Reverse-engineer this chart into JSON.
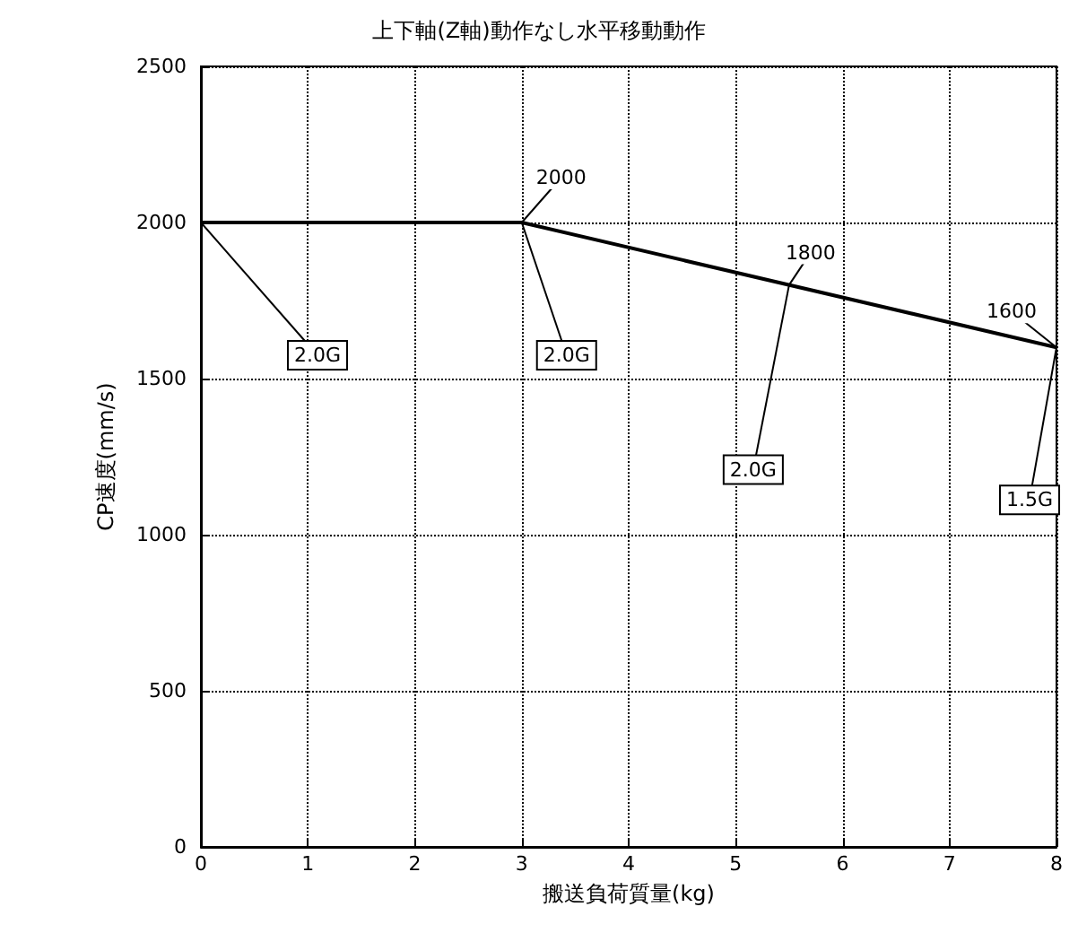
{
  "chart_data": {
    "type": "line",
    "title": "上下軸(Z軸)動作なし水平移動動作",
    "xlabel": "搬送負荷質量(kg)",
    "ylabel": "CP速度(mm/s)",
    "x": [
      0,
      3,
      8
    ],
    "series": [
      {
        "color": "#000000",
        "values": [
          2000,
          2000,
          1600
        ]
      }
    ],
    "xlim": [
      0,
      8
    ],
    "xticks": [
      0,
      1,
      2,
      3,
      4,
      5,
      6,
      7,
      8
    ],
    "ylim": [
      0,
      2500
    ],
    "yticks": [
      0,
      500,
      1000,
      1500,
      2000,
      2500
    ],
    "grid": true,
    "marker": "none",
    "line_style": "solid",
    "annotations": [
      {
        "text": "2000",
        "x": 3,
        "y": 2000
      },
      {
        "text": "1800",
        "x": 5.5,
        "y": 1800
      },
      {
        "text": "1600",
        "x": 8,
        "y": 1600
      },
      {
        "text": "2.0G",
        "x": 0,
        "y": 2000
      },
      {
        "text": "2.0G",
        "x": 3,
        "y": 2000
      },
      {
        "text": "2.0G",
        "x": 5.5,
        "y": 1800
      },
      {
        "text": "1.5G",
        "x": 8,
        "y": 1600
      }
    ]
  }
}
